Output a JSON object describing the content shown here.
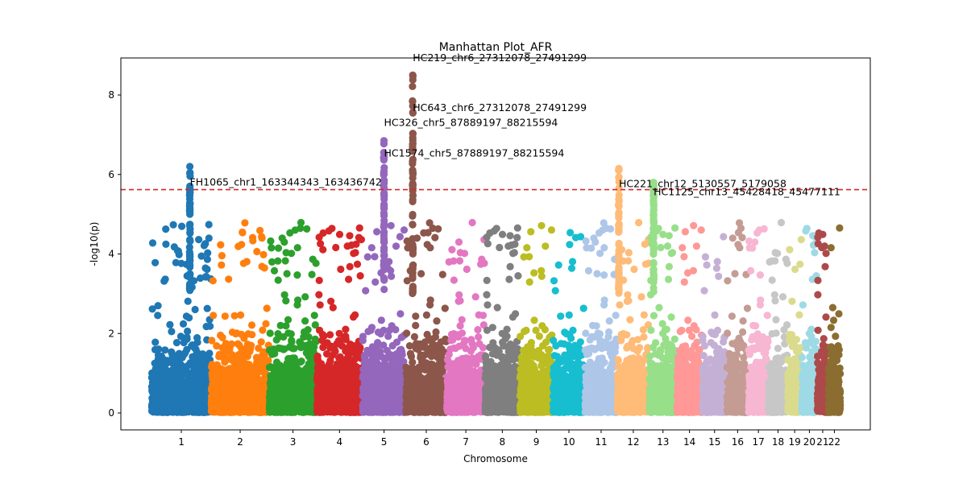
{
  "chart_data": {
    "type": "scatter",
    "title": "Manhattan Plot_AFR",
    "xlabel": "Chromosome",
    "ylabel": "-log10(p)",
    "ylim": [
      -0.45,
      8.9
    ],
    "yticks": [
      0,
      2,
      4,
      6,
      8
    ],
    "threshold": 5.62,
    "threshold_color": "#d62728",
    "grid": false,
    "chromosomes": [
      {
        "label": "1",
        "start": 0,
        "end": 248.9,
        "color": "#1f77b4"
      },
      {
        "label": "2",
        "start": 248.9,
        "end": 491.1,
        "color": "#ff7f0e"
      },
      {
        "label": "3",
        "start": 491.1,
        "end": 689.4,
        "color": "#2ca02c"
      },
      {
        "label": "4",
        "start": 689.4,
        "end": 879.6,
        "color": "#d62728"
      },
      {
        "label": "5",
        "start": 879.6,
        "end": 1061.1,
        "color": "#9467bd"
      },
      {
        "label": "6",
        "start": 1061.1,
        "end": 1231.9,
        "color": "#8c564b"
      },
      {
        "label": "7",
        "start": 1231.9,
        "end": 1391.2,
        "color": "#e377c2"
      },
      {
        "label": "8",
        "start": 1391.2,
        "end": 1536.3,
        "color": "#7f7f7f"
      },
      {
        "label": "9",
        "start": 1536.3,
        "end": 1674.7,
        "color": "#bcbd22"
      },
      {
        "label": "10",
        "start": 1674.7,
        "end": 1808.5,
        "color": "#17becf"
      },
      {
        "label": "11",
        "start": 1808.5,
        "end": 1943.6,
        "color": "#aec7e8"
      },
      {
        "label": "12",
        "start": 1943.6,
        "end": 2076.9,
        "color": "#ffbb78"
      },
      {
        "label": "13",
        "start": 2076.9,
        "end": 2191.3,
        "color": "#98df8a"
      },
      {
        "label": "14",
        "start": 2191.3,
        "end": 2298.3,
        "color": "#ff9896"
      },
      {
        "label": "15",
        "start": 2298.3,
        "end": 2400.3,
        "color": "#c5b0d5"
      },
      {
        "label": "16",
        "start": 2400.3,
        "end": 2490.6,
        "color": "#c49c94"
      },
      {
        "label": "17",
        "start": 2490.6,
        "end": 2573.9,
        "color": "#f7b6d2"
      },
      {
        "label": "18",
        "start": 2573.9,
        "end": 2654.2,
        "color": "#c7c7c7"
      },
      {
        "label": "19",
        "start": 2654.2,
        "end": 2712.8,
        "color": "#dbdb8d"
      },
      {
        "label": "20",
        "start": 2712.8,
        "end": 2777.2,
        "color": "#9edae5"
      },
      {
        "label": "21",
        "start": 2777.2,
        "end": 2823.9,
        "color": "#ad494a"
      },
      {
        "label": "22",
        "start": 2823.9,
        "end": 2874.7,
        "color": "#8c6d31"
      }
    ],
    "peaks": [
      {
        "chrom": "1",
        "x": 160,
        "y": 6.2
      },
      {
        "chrom": "5",
        "x": 970,
        "y": 6.85
      },
      {
        "chrom": "6",
        "x": 1090,
        "y": 8.5
      },
      {
        "chrom": "12",
        "x": 1950,
        "y": 6.15
      },
      {
        "chrom": "13",
        "x": 2095,
        "y": 5.8
      }
    ],
    "annotations": [
      {
        "text": "HC219_chr6_27312078_27491299",
        "x": 1090,
        "y": 8.85
      },
      {
        "text": "HC643_chr6_27312078_27491299",
        "x": 1090,
        "y": 7.6
      },
      {
        "text": "HC326_chr5_87889197_88215594",
        "x": 970,
        "y": 7.22
      },
      {
        "text": "HC1574_chr5_87889197_88215594",
        "x": 970,
        "y": 6.45
      },
      {
        "text": "FH1065_chr1_163344343_163436742",
        "x": 160,
        "y": 5.72
      },
      {
        "text": "HC221_chr12_5130557_5179058",
        "x": 1950,
        "y": 5.68
      },
      {
        "text": "HC1125_chr13_45428418_45477111",
        "x": 2095,
        "y": 5.48
      }
    ]
  }
}
